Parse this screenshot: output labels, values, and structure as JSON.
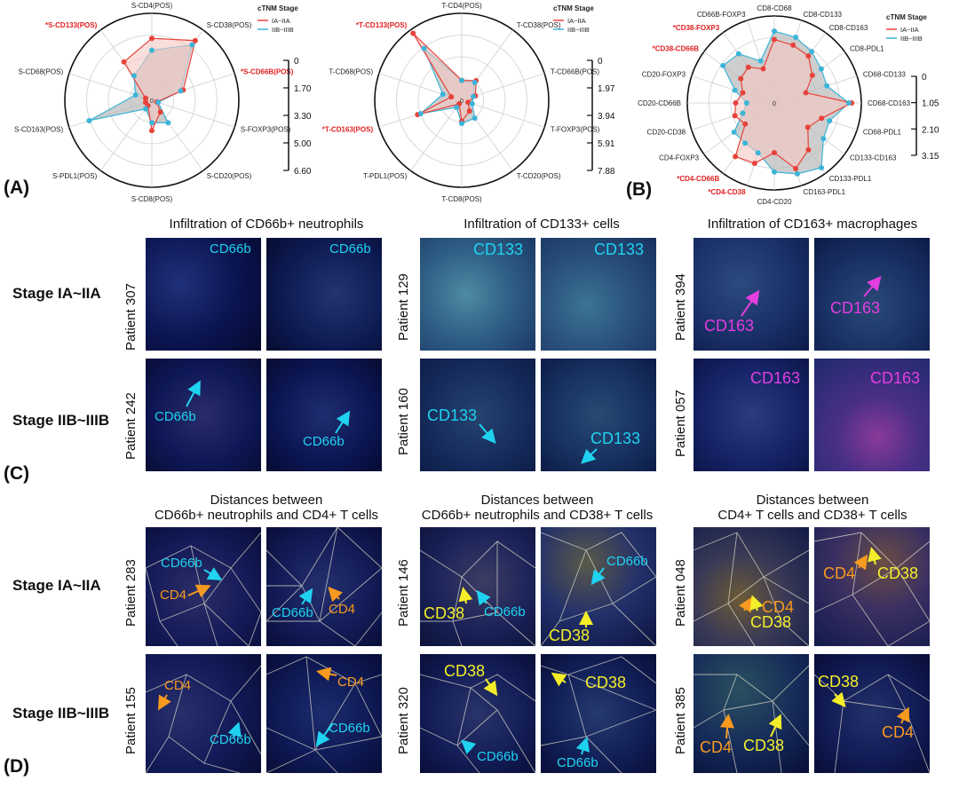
{
  "panels": {
    "a": "(A)",
    "b": "(B)",
    "c": "(C)",
    "d": "(D)"
  },
  "legend_title": "cTNM Stage",
  "legend_items": [
    "IA~IIA",
    "IIB~IIIB"
  ],
  "colors": {
    "early": "#e8423a",
    "late": "#3cb4d8",
    "fill_early": "#f7c8c3",
    "fill_late": "#b9b9b9"
  },
  "chart_data": [
    {
      "type": "radar",
      "id": "A1",
      "axes": [
        "S-CD4(POS)",
        "S-CD38(POS)",
        "*S-CD66B(POS)",
        "S-FOXP3(POS)",
        "S-CD20(POS)",
        "S-CD8(POS)",
        "S-PDL1(POS)",
        "S-CD163(POS)",
        "S-CD68(POS)",
        "*S-CD133(POS)"
      ],
      "significant": [
        2,
        9
      ],
      "scale_ticks": [
        "0",
        "1.70",
        "3.30",
        "5.00",
        "6.60"
      ],
      "max": 6.6,
      "series": [
        {
          "name": "IA~IIA",
          "values": [
            4.7,
            5.6,
            2.5,
            0.4,
            1.1,
            2.3,
            0.5,
            0.5,
            0.5,
            3.6
          ]
        },
        {
          "name": "IIB~IIIB",
          "values": [
            3.8,
            5.2,
            2.3,
            0.5,
            2.1,
            1.7,
            0.8,
            5.0,
            1.3,
            2.3
          ]
        }
      ]
    },
    {
      "type": "radar",
      "id": "A2",
      "axes": [
        "T-CD4(POS)",
        "T-CD38(POS)",
        "T-CD66B(POS)",
        "T-FOXP3(POS)",
        "T-CD20(POS)",
        "T-CD8(POS)",
        "T-PDL1(POS)",
        "*T-CD163(POS)",
        "T-CD68(POS)",
        "*T-CD133(POS)"
      ],
      "significant": [
        7,
        9
      ],
      "scale_ticks": [
        "0",
        "1.97",
        "3.94",
        "5.91",
        "7.88"
      ],
      "max": 7.88,
      "series": [
        {
          "name": "IA~IIA",
          "values": [
            1.8,
            2.2,
            1.3,
            0.6,
            1.2,
            1.9,
            0.4,
            4.2,
            1.0,
            7.5
          ]
        },
        {
          "name": "IIB~IIIB",
          "values": [
            1.8,
            2.0,
            1.1,
            1.0,
            2.0,
            2.1,
            0.8,
            3.9,
            1.8,
            5.8
          ]
        }
      ]
    },
    {
      "type": "radar",
      "id": "B",
      "axes": [
        "CD8-CD68",
        "CD8-CD133",
        "CD8-CD163",
        "CD8-PDL1",
        "CD68-CD133",
        "CD68-CD163",
        "CD68-PDL1",
        "CD133-CD163",
        "CD133-PDL1",
        "CD163-PDL1",
        "CD4-CD20",
        "*CD4-CD38",
        "*CD4-CD66B",
        "CD4-FOXP3",
        "CD20-CD38",
        "CD20-CD66B",
        "CD20-FOXP3",
        "*CD38-CD66B",
        "*CD38-FOXP3",
        "CD66B-FOXP3"
      ],
      "significant": [
        11,
        12,
        17,
        18
      ],
      "scale_ticks": [
        "0",
        "1.05",
        "2.10",
        "3.15"
      ],
      "max": 3.15,
      "series": [
        {
          "name": "IA~IIA",
          "values": [
            2.3,
            2.2,
            2.1,
            1.7,
            1.2,
            2.8,
            1.8,
            1.5,
            2.1,
            2.5,
            1.8,
            2.3,
            2.4,
            1.3,
            1.5,
            1.4,
            1.2,
            1.5,
            1.6,
            1.3
          ]
        },
        {
          "name": "IIB~IIIB",
          "values": [
            2.6,
            2.5,
            2.3,
            2.1,
            2.0,
            2.7,
            2.1,
            2.2,
            2.9,
            2.7,
            2.5,
            1.9,
            1.8,
            1.8,
            1.2,
            1.0,
            1.5,
            2.3,
            2.2,
            1.6
          ]
        }
      ]
    }
  ],
  "c": {
    "titles": [
      "Infiltration of CD66b+ neutrophils",
      "Infiltration of CD133+ cells",
      "Infiltration of CD163+ macrophages"
    ],
    "stages": [
      "Stage IA~IIA",
      "Stage IIB~IIIB"
    ],
    "patients": [
      "Patient 307",
      "Patient 242",
      "Patient 129",
      "Patient 160",
      "Patient 394",
      "Patient 057"
    ],
    "labels": {
      "cd66b": "CD66b",
      "cd133": "CD133",
      "cd163": "CD163"
    }
  },
  "d": {
    "titles": [
      [
        "Distances between",
        "CD66b+ neutrophils and CD4+ T cells"
      ],
      [
        "Distances between",
        "CD66b+ neutrophils and CD38+ T cells"
      ],
      [
        "Distances between",
        "CD4+ T cells and CD38+ T cells"
      ]
    ],
    "stages": [
      "Stage IA~IIA",
      "Stage IIB~IIIB"
    ],
    "patients": [
      "Patient 283",
      "Patient 155",
      "Patient 146",
      "Patient 320",
      "Patient 048",
      "Patient 385"
    ],
    "labels": {
      "cd66b": "CD66b",
      "cd4": "CD4",
      "cd38": "CD38"
    }
  }
}
